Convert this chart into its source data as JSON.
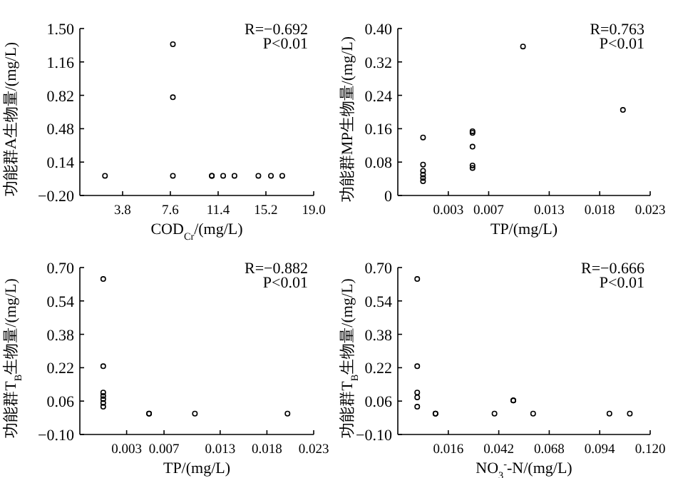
{
  "chart_data": [
    {
      "type": "scatter",
      "xlabel": "COD$_{Cr}$/(mg/L)",
      "ylabel": "功能群A生物量/(mg/L)",
      "annotations": [
        "R=−0.692",
        "P<0.01"
      ],
      "marker": "circle",
      "color": "#000000",
      "x": [
        2.4,
        7.8,
        7.8,
        7.8,
        10.9,
        10.9,
        11.8,
        12.7,
        14.6,
        15.6,
        16.5
      ],
      "values": [
        0.0,
        1.34,
        0.8,
        0.0,
        0.0,
        0.0,
        0.0,
        0.0,
        0.0,
        0.0,
        0.0
      ],
      "xlim": [
        0.4,
        19
      ],
      "xticks": [
        3.8,
        7.6,
        11.4,
        15.2,
        {
          "value": 19,
          "label": "19.0"
        }
      ],
      "ylim": [
        -0.2,
        1.5
      ],
      "yticks": [
        {
          "value": -0.2,
          "label": "−0.20"
        },
        0.14,
        0.48,
        0.82,
        1.16,
        {
          "value": 1.5,
          "label": "1.50"
        }
      ]
    },
    {
      "type": "scatter",
      "xlabel": "TP/(mg/L)",
      "ylabel": "功能群MP生物量/(mg/L)",
      "annotations": [
        "R=0.763",
        "P<0.01"
      ],
      "marker": "circle",
      "color": "#000000",
      "x": [
        0.0005,
        0.0005,
        0.0005,
        0.0005,
        0.0005,
        0.0005,
        0.0054,
        0.0054,
        0.0054,
        0.0054,
        0.0054,
        0.0104,
        0.0203
      ],
      "values": [
        0.139,
        0.074,
        0.059,
        0.05,
        0.042,
        0.034,
        0.154,
        0.15,
        0.117,
        0.072,
        0.066,
        0.357,
        0.205
      ],
      "xlim": [
        -0.002,
        0.023
      ],
      "xticks": [
        0.003,
        0.007,
        0.013,
        0.018,
        0.023
      ],
      "ylim": [
        0,
        0.4
      ],
      "yticks": [
        0,
        0.08,
        0.16,
        0.24,
        0.32,
        {
          "value": 0.4,
          "label": "0.40"
        }
      ]
    },
    {
      "type": "scatter",
      "xlabel": "TP/(mg/L)",
      "ylabel": "功能群T$_{B}$生物量/(mg/L)",
      "annotations": [
        "R=−0.882",
        "P<0.01"
      ],
      "marker": "circle",
      "color": "#000000",
      "x": [
        0.0005,
        0.0005,
        0.0005,
        0.0005,
        0.0005,
        0.0005,
        0.0005,
        0.0054,
        0.0054,
        0.0103,
        0.0202
      ],
      "values": [
        0.645,
        0.227,
        0.101,
        0.085,
        0.069,
        0.051,
        0.033,
        0.0,
        0.0,
        0.0,
        0.0
      ],
      "xlim": [
        -0.002,
        0.023
      ],
      "xticks": [
        0.003,
        0.007,
        0.013,
        0.018,
        0.023
      ],
      "ylim": [
        -0.1,
        0.7
      ],
      "yticks": [
        {
          "value": -0.1,
          "label": "−0.10"
        },
        0.06,
        0.22,
        0.38,
        0.54,
        {
          "value": 0.7,
          "label": "0.70"
        }
      ]
    },
    {
      "type": "scatter",
      "xlabel": "NO$_{3}$$^{-}$-N/(mg/L)",
      "ylabel": "功能群T$_{B}$生物量/(mg/L)",
      "annotations": [
        "R=−0.666",
        "P<0.01"
      ],
      "marker": "circle",
      "color": "#000000",
      "x": [
        0.0,
        0.0,
        0.0,
        0.0,
        0.0,
        0.0094,
        0.0094,
        0.0398,
        0.0495,
        0.0495,
        0.0597,
        0.099,
        0.1095
      ],
      "values": [
        0.645,
        0.227,
        0.101,
        0.078,
        0.033,
        0.0,
        0.0,
        0.0,
        0.063,
        0.063,
        0.0,
        0.0,
        0.0
      ],
      "xlim": [
        -0.01,
        0.12
      ],
      "xticks": [
        0.016,
        0.042,
        0.068,
        0.094,
        {
          "value": 0.12,
          "label": "0.120"
        }
      ],
      "ylim": [
        -0.1,
        0.7
      ],
      "yticks": [
        {
          "value": -0.1,
          "label": "−0.10"
        },
        0.06,
        0.22,
        0.38,
        0.54,
        {
          "value": 0.7,
          "label": "0.70"
        }
      ]
    }
  ]
}
